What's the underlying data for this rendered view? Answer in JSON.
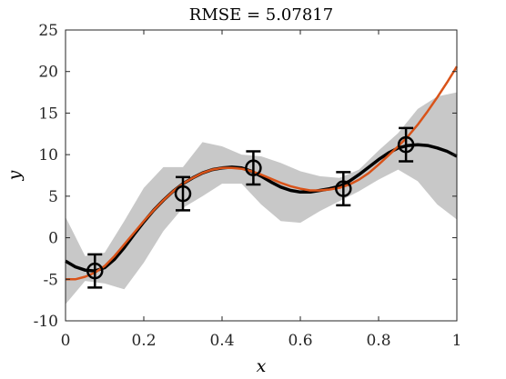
{
  "chart_data": {
    "type": "line",
    "title": "RMSE = 5.07817",
    "xlabel": "x",
    "ylabel": "y",
    "xlim": [
      0,
      1
    ],
    "ylim": [
      -10,
      25
    ],
    "x_ticks": [
      "0",
      "0.2",
      "0.4",
      "0.6",
      "0.8",
      "1"
    ],
    "y_ticks": [
      "-10",
      "-5",
      "0",
      "5",
      "10",
      "15",
      "20",
      "25"
    ],
    "grid": false,
    "colors": {
      "band": "#c8c8c8",
      "mean": "#000000",
      "truth": "#d95319",
      "points": "#000000"
    },
    "series": [
      {
        "kind": "band",
        "x": [
          0,
          0.05,
          0.1,
          0.15,
          0.2,
          0.25,
          0.3,
          0.35,
          0.4,
          0.45,
          0.5,
          0.55,
          0.6,
          0.65,
          0.7,
          0.75,
          0.8,
          0.85,
          0.9,
          0.95,
          1.0
        ],
        "lower": [
          -8.0,
          -5.2,
          -5.5,
          -6.2,
          -3.0,
          0.8,
          3.6,
          5.0,
          6.5,
          6.5,
          4.0,
          2.0,
          1.8,
          3.2,
          4.4,
          5.6,
          7.0,
          8.2,
          6.8,
          4.0,
          2.2
        ],
        "upper": [
          2.5,
          -2.2,
          -1.8,
          2.0,
          6.0,
          8.5,
          8.5,
          11.5,
          11.0,
          10.0,
          9.8,
          9.0,
          8.0,
          7.4,
          7.2,
          8.2,
          10.5,
          12.6,
          15.5,
          17.0,
          17.5
        ]
      },
      {
        "kind": "mean",
        "x": [
          0,
          0.025,
          0.05,
          0.075,
          0.1,
          0.125,
          0.15,
          0.175,
          0.2,
          0.225,
          0.25,
          0.275,
          0.3,
          0.325,
          0.35,
          0.375,
          0.4,
          0.425,
          0.45,
          0.475,
          0.5,
          0.525,
          0.55,
          0.575,
          0.6,
          0.625,
          0.65,
          0.675,
          0.7,
          0.725,
          0.75,
          0.775,
          0.8,
          0.825,
          0.85,
          0.875,
          0.9,
          0.925,
          0.95,
          0.975,
          1.0
        ],
        "y": [
          -2.8,
          -3.5,
          -3.9,
          -4.0,
          -3.6,
          -2.6,
          -1.2,
          0.4,
          1.9,
          3.3,
          4.5,
          5.6,
          6.5,
          7.2,
          7.8,
          8.2,
          8.4,
          8.5,
          8.4,
          8.0,
          7.4,
          6.7,
          6.1,
          5.7,
          5.5,
          5.5,
          5.7,
          5.9,
          6.2,
          6.8,
          7.6,
          8.5,
          9.4,
          10.2,
          10.8,
          11.1,
          11.2,
          11.1,
          10.8,
          10.4,
          9.8
        ]
      },
      {
        "kind": "truth",
        "x": [
          0,
          0.025,
          0.05,
          0.075,
          0.1,
          0.125,
          0.15,
          0.175,
          0.2,
          0.225,
          0.25,
          0.275,
          0.3,
          0.325,
          0.35,
          0.375,
          0.4,
          0.425,
          0.45,
          0.475,
          0.5,
          0.525,
          0.55,
          0.575,
          0.6,
          0.625,
          0.65,
          0.675,
          0.7,
          0.725,
          0.75,
          0.775,
          0.8,
          0.825,
          0.85,
          0.875,
          0.9,
          0.925,
          0.95,
          0.975,
          1.0
        ],
        "y": [
          -5.0,
          -5.0,
          -4.7,
          -4.2,
          -3.4,
          -2.2,
          -0.8,
          0.6,
          2.0,
          3.3,
          4.5,
          5.6,
          6.5,
          7.2,
          7.8,
          8.2,
          8.4,
          8.4,
          8.3,
          8.0,
          7.6,
          7.1,
          6.6,
          6.2,
          5.9,
          5.7,
          5.7,
          5.8,
          6.0,
          6.4,
          7.0,
          7.8,
          8.8,
          9.9,
          11.0,
          12.2,
          13.6,
          15.2,
          16.9,
          18.7,
          20.6
        ]
      },
      {
        "kind": "observations",
        "x": [
          0.075,
          0.3,
          0.48,
          0.71,
          0.87
        ],
        "y": [
          -4.0,
          5.3,
          8.4,
          5.9,
          11.2
        ],
        "err": [
          2.0,
          2.0,
          2.0,
          2.0,
          2.0
        ]
      }
    ]
  }
}
